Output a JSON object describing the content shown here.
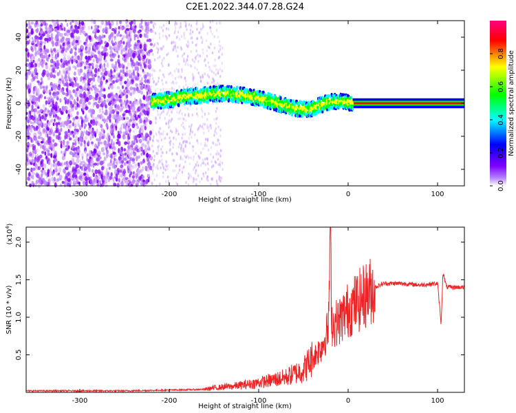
{
  "title": "C2E1.2022.344.07.28.G24",
  "chart_data": [
    {
      "type": "heatmap",
      "xlabel": "Height of straight line (km)",
      "ylabel": "Frequency (Hz)",
      "xlim": [
        -360,
        130
      ],
      "ylim": [
        -50,
        50
      ],
      "xticks": [
        -300,
        -200,
        -100,
        0,
        100
      ],
      "yticks": [
        -40,
        -20,
        0,
        20,
        40
      ],
      "colorbar": {
        "label": "Normalized spectral amplitude",
        "range": [
          0.0,
          1.0
        ],
        "ticks": [
          "0.0",
          "0.2",
          "0.4",
          "0.6",
          "0.8"
        ],
        "colors": [
          "#ffffff",
          "#7f00ff",
          "#0000ff",
          "#00ffff",
          "#00ff00",
          "#ffff00",
          "#ff0000",
          "#ff00aa"
        ]
      },
      "signal_trace": {
        "x": [
          -220,
          -200,
          -180,
          -160,
          -140,
          -120,
          -100,
          -80,
          -60,
          -45,
          -35,
          -20,
          -5,
          5,
          130
        ],
        "y": [
          1,
          2,
          4,
          5,
          6,
          5,
          3,
          0,
          -3,
          -4,
          -2,
          1,
          1,
          0,
          0
        ]
      },
      "noise_region": [
        -360,
        -220
      ]
    },
    {
      "type": "line",
      "xlabel": "Height of straight line (km)",
      "ylabel": "SNR (10 * v/v)",
      "y_multiplier": "(x10",
      "y_multiplier_exp": "4",
      "xlim": [
        -360,
        130
      ],
      "ylim": [
        0,
        2.2
      ],
      "xticks": [
        -300,
        -200,
        -100,
        0,
        100
      ],
      "yticks": [
        "0.5",
        "1.0",
        "1.5",
        "2.0"
      ],
      "color": "#ee2222",
      "series": [
        {
          "x": [
            -360,
            -300,
            -250,
            -200,
            -160,
            -150,
            -130,
            -110,
            -90,
            -70,
            -50,
            -40,
            -30,
            -22,
            -20,
            -18,
            -10,
            0,
            10,
            20,
            30,
            40,
            60,
            80,
            100,
            104,
            106,
            110,
            130
          ],
          "y": [
            0.02,
            0.02,
            0.02,
            0.03,
            0.04,
            0.06,
            0.08,
            0.11,
            0.15,
            0.2,
            0.3,
            0.45,
            0.6,
            0.85,
            2.2,
            0.9,
            0.95,
            1.1,
            1.2,
            1.3,
            1.4,
            1.45,
            1.45,
            1.43,
            1.45,
            0.9,
            1.6,
            1.4,
            1.4
          ]
        }
      ]
    }
  ]
}
